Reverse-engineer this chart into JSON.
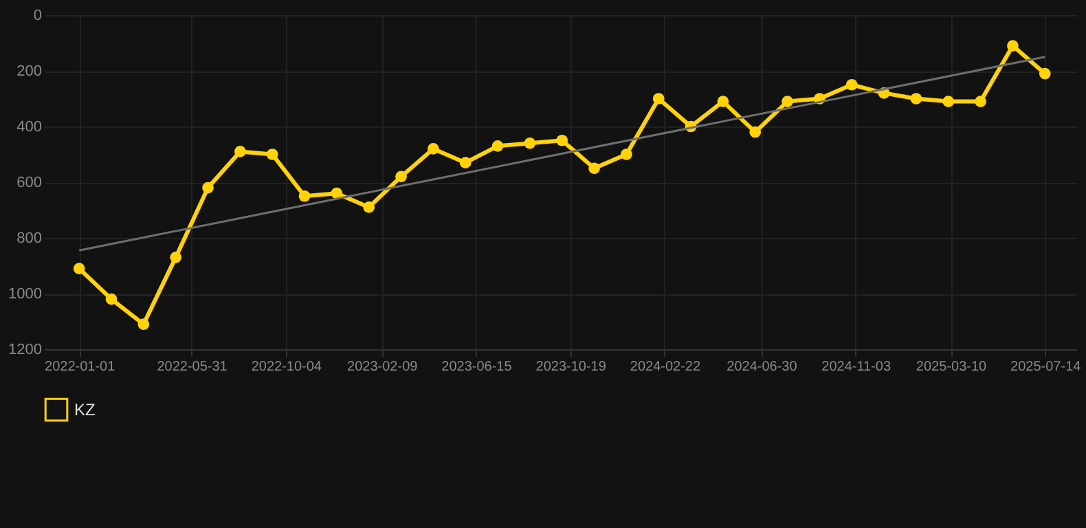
{
  "chart_data": {
    "type": "line",
    "x": [
      "2022-01-01",
      "2022-02-13",
      "2022-03-28",
      "2022-05-10",
      "2022-06-22",
      "2022-08-04",
      "2022-09-16",
      "2022-10-29",
      "2022-12-11",
      "2023-01-23",
      "2023-03-07",
      "2023-04-19",
      "2023-06-01",
      "2023-07-14",
      "2023-08-26",
      "2023-10-08",
      "2023-11-20",
      "2024-01-02",
      "2024-02-14",
      "2024-03-28",
      "2024-05-10",
      "2024-06-22",
      "2024-08-04",
      "2024-09-16",
      "2024-10-29",
      "2024-12-11",
      "2025-01-23",
      "2025-03-07",
      "2025-04-19",
      "2025-06-01",
      "2025-07-14"
    ],
    "series": [
      {
        "name": "KZ",
        "color": "#ffd20a",
        "values": [
          910,
          1020,
          1110,
          870,
          620,
          490,
          500,
          650,
          640,
          690,
          580,
          480,
          530,
          470,
          460,
          450,
          550,
          500,
          300,
          400,
          310,
          420,
          310,
          300,
          250,
          280,
          300,
          310,
          310,
          110,
          210
        ],
        "marker": "circle"
      },
      {
        "type": "line",
        "color": "#6e6e6e",
        "x": [
          "2022-01-01",
          "2025-07-14"
        ],
        "values": [
          845,
          150
        ],
        "marker": "none"
      }
    ],
    "ylim": [
      1200,
      0
    ],
    "yticks": [
      0,
      200,
      400,
      600,
      800,
      1000,
      1200
    ],
    "xlim": [
      "2021-11-15",
      "2025-08-25"
    ],
    "xticks": [
      {
        "value": "2022-01-01",
        "label": "2022-01-01"
      },
      {
        "value": "2022-05-31",
        "label": "2022-05-31"
      },
      {
        "value": "2022-10-04",
        "label": "2022-10-04"
      },
      {
        "value": "2023-02-09",
        "label": "2023-02-09"
      },
      {
        "value": "2023-06-15",
        "label": "2023-06-15"
      },
      {
        "value": "2023-10-19",
        "label": "2023-10-19"
      },
      {
        "value": "2024-02-22",
        "label": "2024-02-22"
      },
      {
        "value": "2024-06-30",
        "label": "2024-06-30"
      },
      {
        "value": "2024-11-03",
        "label": "2024-11-03"
      },
      {
        "value": "2025-03-10",
        "label": "2025-03-10"
      },
      {
        "value": "2025-07-14",
        "label": "2025-07-14"
      }
    ],
    "grid": true,
    "legend": "bottom",
    "line_style": "solid"
  }
}
